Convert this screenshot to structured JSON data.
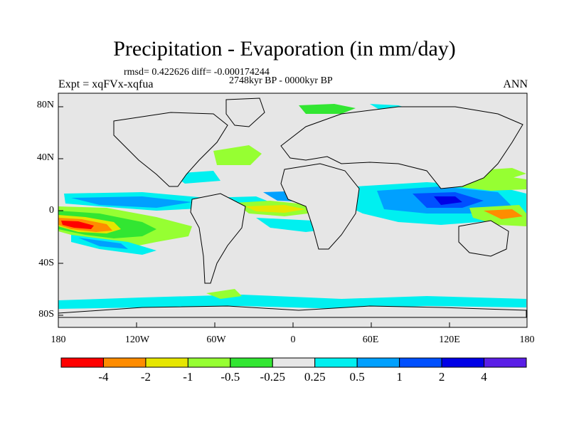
{
  "title": "Precipitation - Evaporation (in mm/day)",
  "stats": "rmsd= 0.422626 diff= -0.000174244",
  "period": "2748kyr BP - 0000kyr BP",
  "experiment": "Expt = xqFVx-xqfua",
  "season": "ANN",
  "lat_labels": [
    "80N",
    "40N",
    "0",
    "40S",
    "80S"
  ],
  "lon_labels": [
    "180",
    "120W",
    "60W",
    "0",
    "60E",
    "120E",
    "180"
  ],
  "colorbar": {
    "colors": [
      "#ff0000",
      "#ff8c00",
      "#e6e600",
      "#96ff32",
      "#32e632",
      "#e6e6e6",
      "#00f0f0",
      "#00a0ff",
      "#0050ff",
      "#0000e6",
      "#5a1ee6"
    ],
    "labels": [
      "-4",
      "-2",
      "-1",
      "-0.5",
      "-0.25",
      "0.25",
      "0.5",
      "1",
      "2",
      "4"
    ]
  },
  "colors": {
    "ocean": "#e6e6e6",
    "coast": "#000000"
  }
}
